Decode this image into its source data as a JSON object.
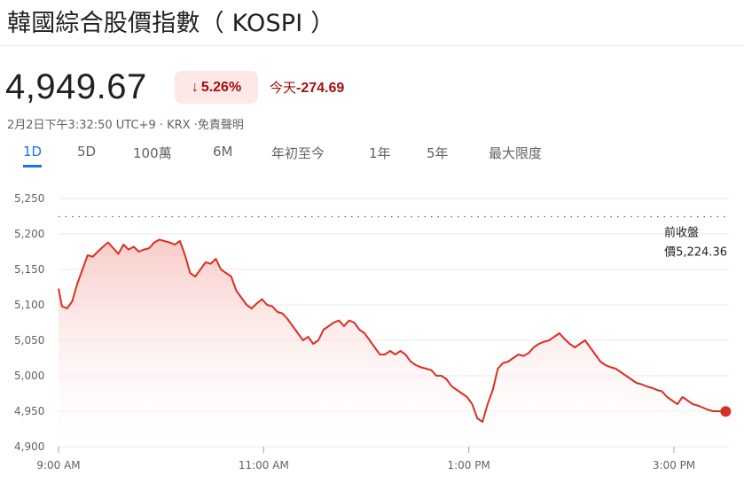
{
  "header": {
    "title": "韓國綜合股價指數（ KOSPI ）"
  },
  "quote": {
    "price": "4,949.67",
    "change_pct": "5.26%",
    "change_arrow": "↓",
    "today_label": "今天",
    "today_change": "-274.69",
    "meta": "2月2日下午3:32:50 UTC+9 · KRX ·免責聲明"
  },
  "range_tabs": [
    {
      "label": "1D",
      "active": true
    },
    {
      "label": "5D",
      "active": false
    },
    {
      "label": "100萬",
      "active": false
    },
    {
      "label": "6M",
      "active": false
    },
    {
      "label": "年初至今",
      "active": false
    },
    {
      "label": "1年",
      "active": false
    },
    {
      "label": "5年",
      "active": false
    },
    {
      "label": "最大限度",
      "active": false
    }
  ],
  "colors": {
    "line": "#d93025",
    "fill_top": "#f8c9c5",
    "grid": "#e8eaed",
    "active_tab": "#1a73e8",
    "negative_text": "#a50e0e",
    "badge_bg": "#fce8e6"
  },
  "chart_data": {
    "type": "area",
    "title": "",
    "xlabel": "",
    "ylabel": "",
    "ylim": [
      4900,
      5250
    ],
    "xlim": [
      "9:00",
      "15:50"
    ],
    "y_ticks": [
      "4,900",
      "4,950",
      "5,000",
      "5,050",
      "5,100",
      "5,150",
      "5,200",
      "5,250"
    ],
    "x_ticks": [
      "9:00 AM",
      "11:00 AM",
      "1:00 PM",
      "3:00 PM"
    ],
    "grid": true,
    "previous_close": {
      "label_line1": "前收盤",
      "label_line2": "價5,224.36",
      "value": 5224.36
    },
    "last_value": 4949.67,
    "series": [
      {
        "x": [
          "9:00",
          "9:02",
          "9:05",
          "9:08",
          "9:11",
          "9:14",
          "9:17",
          "9:20",
          "9:23",
          "9:26",
          "9:29",
          "9:32",
          "9:35",
          "9:38",
          "9:41",
          "9:44",
          "9:47",
          "9:50",
          "9:53",
          "9:56",
          "9:59",
          "10:02",
          "10:05",
          "10:08",
          "10:11",
          "10:14",
          "10:17",
          "10:20",
          "10:23",
          "10:26",
          "10:29",
          "10:32",
          "10:35",
          "10:38",
          "10:41",
          "10:44",
          "10:47",
          "10:50",
          "10:53",
          "10:56",
          "10:59",
          "11:02",
          "11:05",
          "11:08",
          "11:11",
          "11:14",
          "11:17",
          "11:20",
          "11:23",
          "11:26",
          "11:29",
          "11:32",
          "11:35",
          "11:38",
          "11:41",
          "11:44",
          "11:47",
          "11:50",
          "11:53",
          "11:56",
          "11:59",
          "12:02",
          "12:05",
          "12:08",
          "12:11",
          "12:14",
          "12:17",
          "12:20",
          "12:23",
          "12:26",
          "12:29",
          "12:32",
          "12:35",
          "12:38",
          "12:41",
          "12:44",
          "12:47",
          "12:50",
          "12:53",
          "12:56",
          "12:59",
          "13:02",
          "13:05",
          "13:08",
          "13:11",
          "13:14",
          "13:17",
          "13:20",
          "13:23",
          "13:26",
          "13:29",
          "13:32",
          "13:35",
          "13:38",
          "13:41",
          "13:44",
          "13:47",
          "13:50",
          "13:53",
          "13:56",
          "13:59",
          "14:02",
          "14:05",
          "14:08",
          "14:11",
          "14:14",
          "14:17",
          "14:20",
          "14:23",
          "14:26",
          "14:29",
          "14:32",
          "14:35",
          "14:38",
          "14:41",
          "14:44",
          "14:47",
          "14:50",
          "14:53",
          "14:56",
          "14:59",
          "15:02",
          "15:05",
          "15:08",
          "15:11",
          "15:14",
          "15:17",
          "15:20",
          "15:23",
          "15:26",
          "15:30"
        ],
        "values": [
          5123,
          5098,
          5095,
          5105,
          5130,
          5150,
          5170,
          5168,
          5175,
          5182,
          5188,
          5180,
          5172,
          5185,
          5178,
          5182,
          5175,
          5178,
          5180,
          5188,
          5192,
          5190,
          5188,
          5185,
          5190,
          5170,
          5145,
          5140,
          5150,
          5160,
          5158,
          5165,
          5150,
          5145,
          5140,
          5120,
          5110,
          5100,
          5095,
          5102,
          5108,
          5100,
          5098,
          5090,
          5088,
          5080,
          5070,
          5060,
          5050,
          5055,
          5045,
          5050,
          5065,
          5070,
          5075,
          5078,
          5070,
          5078,
          5075,
          5065,
          5060,
          5050,
          5040,
          5030,
          5030,
          5035,
          5030,
          5035,
          5030,
          5020,
          5015,
          5012,
          5010,
          5008,
          5000,
          5000,
          4995,
          4985,
          4980,
          4975,
          4970,
          4960,
          4940,
          4935,
          4960,
          4980,
          5010,
          5018,
          5020,
          5025,
          5030,
          5028,
          5032,
          5040,
          5045,
          5048,
          5050,
          5055,
          5060,
          5052,
          5045,
          5040,
          5045,
          5050,
          5040,
          5030,
          5020,
          5015,
          5012,
          5010,
          5005,
          5000,
          4995,
          4990,
          4988,
          4985,
          4983,
          4980,
          4978,
          4970,
          4965,
          4960,
          4970,
          4965,
          4960,
          4958,
          4955,
          4952,
          4950,
          4950,
          4949.67
        ]
      }
    ]
  }
}
